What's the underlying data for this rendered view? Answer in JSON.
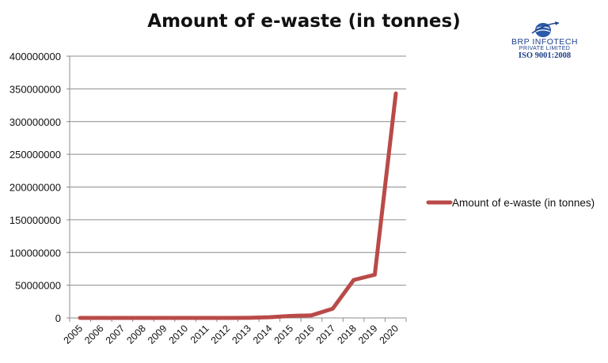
{
  "logo": {
    "name": "BRP INFOTECH",
    "subtitle": "PRIVATE LIMITED",
    "certification": "ISO 9001:2008"
  },
  "colors": {
    "series": "#b94a48",
    "grid": "#8c8c8c",
    "logo": "#1d3f8a"
  },
  "chart_data": {
    "type": "line",
    "title": "Amount of e-waste (in tonnes)",
    "xlabel": "",
    "ylabel": "",
    "categories": [
      "2005",
      "2006",
      "2007",
      "2008",
      "2009",
      "2010",
      "2011",
      "2012",
      "2013",
      "2014",
      "2015",
      "2016",
      "2017",
      "2018",
      "2019",
      "2020"
    ],
    "series": [
      {
        "name": "Amount of e-waste (in tonnes)",
        "values": [
          0,
          0,
          0,
          0,
          0,
          0,
          0,
          0,
          200000,
          1000000,
          3000000,
          4000000,
          14000000,
          58000000,
          66000000,
          343000000
        ]
      }
    ],
    "ylim": [
      0,
      400000000
    ],
    "yticks": [
      "0",
      "50000000",
      "100000000",
      "150000000",
      "200000000",
      "250000000",
      "300000000",
      "350000000",
      "400000000"
    ],
    "grid": true,
    "legend_position": "right"
  }
}
